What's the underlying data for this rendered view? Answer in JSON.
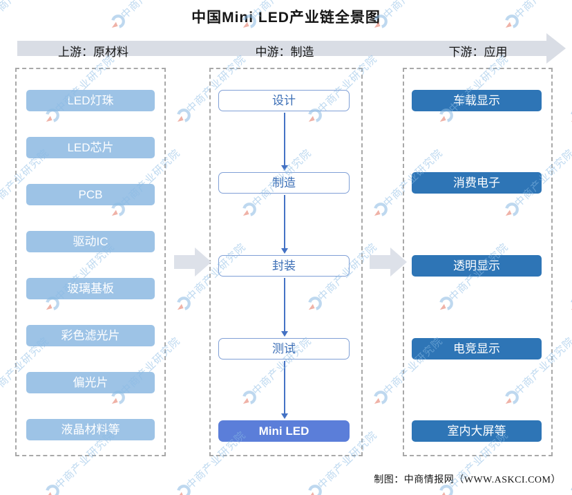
{
  "title": "中国Mini LED产业链全景图",
  "header": {
    "segments": [
      {
        "label": "上游：原材料"
      },
      {
        "label": "中游：制造"
      },
      {
        "label": "下游：应用"
      }
    ]
  },
  "upstream": {
    "items": [
      "LED灯珠",
      "LED芯片",
      "PCB",
      "驱动IC",
      "玻璃基板",
      "彩色滤光片",
      "偏光片",
      "液晶材料等"
    ]
  },
  "midstream": {
    "items": [
      {
        "label": "设计",
        "highlight": false
      },
      {
        "label": "制造",
        "highlight": false
      },
      {
        "label": "封装",
        "highlight": false
      },
      {
        "label": "测试",
        "highlight": false
      },
      {
        "label": "Mini LED",
        "highlight": true
      }
    ]
  },
  "downstream": {
    "items": [
      "车载显示",
      "消费电子",
      "透明显示",
      "电竞显示",
      "室内大屏等"
    ]
  },
  "footer": {
    "credit": "制图：中商情报网（WWW.ASKCI.COM）"
  },
  "watermark": {
    "text": "中商产业研究院"
  },
  "colors": {
    "upstream_box": "#9DC3E6",
    "downstream_box": "#2E75B6",
    "mini_led_box": "#5B7ED9",
    "mid_box_border": "#7F9FD6",
    "mid_box_text": "#3A6DB5",
    "flow_arrow": "#4472C4",
    "stage_band": "#D9DDE5",
    "block_arrow": "#DDE1E9",
    "watermark_blue": "#89BAE3",
    "watermark_red": "#E0654E"
  }
}
